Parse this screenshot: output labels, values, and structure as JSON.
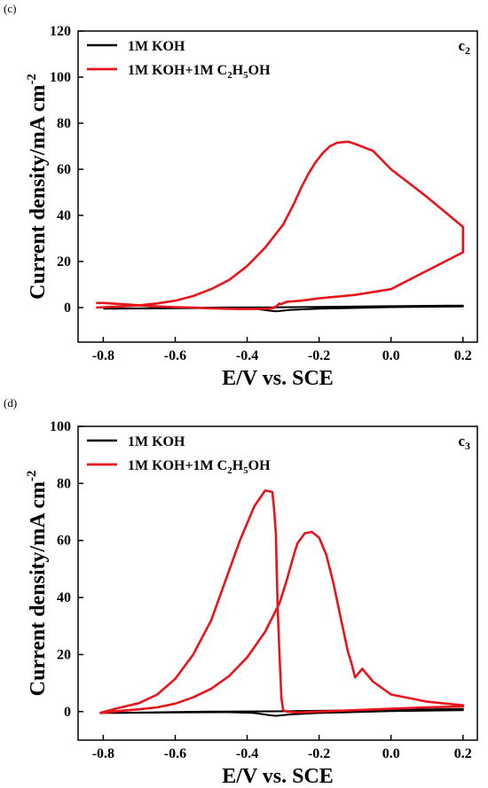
{
  "chart_data": [
    {
      "type": "line",
      "panel_letter": "(c)",
      "corner_label": "c",
      "corner_label_sub": "2",
      "xlabel": "E/V vs. SCE",
      "ylabel_main": "Current density/mA cm",
      "ylabel_sup": "-2",
      "xlim": [
        -0.87,
        0.24
      ],
      "ylim": [
        -15,
        120
      ],
      "x_ticks": [
        -0.8,
        -0.6,
        -0.4,
        -0.2,
        0.0,
        0.2
      ],
      "x_tick_labels": [
        "-0.8",
        "-0.6",
        "-0.4",
        "-0.2",
        "0.0",
        "0.2"
      ],
      "y_ticks": [
        0,
        20,
        40,
        60,
        80,
        100,
        120
      ],
      "y_tick_labels": [
        "0",
        "20",
        "40",
        "60",
        "80",
        "100",
        "120"
      ],
      "grid": false,
      "legend_position": "top-left",
      "series": [
        {
          "name": "1M KOH",
          "color": "#000000",
          "x": [
            -0.8,
            -0.6,
            -0.45,
            -0.38,
            -0.34,
            -0.32,
            -0.28,
            -0.2,
            0.0,
            0.2,
            0.2,
            0.0,
            -0.2,
            -0.33,
            -0.5,
            -0.8
          ],
          "y": [
            -0.5,
            -0.3,
            -0.2,
            -0.5,
            -1.3,
            -1.6,
            -1.0,
            -0.5,
            0.2,
            0.5,
            0.9,
            0.6,
            0.3,
            0.1,
            0.0,
            -0.5
          ]
        },
        {
          "name": "1M KOH+1M C2H5OH",
          "color": "#e8141b",
          "legend_main": "1M KOH+1M C",
          "legend_sub1": "2",
          "legend_mid": "H",
          "legend_sub2": "5",
          "legend_tail": "OH",
          "x": [
            -0.82,
            -0.75,
            -0.7,
            -0.65,
            -0.6,
            -0.55,
            -0.5,
            -0.45,
            -0.4,
            -0.35,
            -0.3,
            -0.27,
            -0.25,
            -0.23,
            -0.21,
            -0.19,
            -0.17,
            -0.15,
            -0.12,
            -0.1,
            -0.05,
            0.0,
            0.1,
            0.2,
            0.2,
            0.1,
            0.0,
            -0.1,
            -0.2,
            -0.25,
            -0.29,
            -0.305,
            -0.31,
            -0.315,
            -0.318,
            -0.32,
            -0.322,
            -0.325,
            -0.33,
            -0.35,
            -0.38,
            -0.42,
            -0.46,
            -0.5,
            -0.55,
            -0.6,
            -0.65,
            -0.7,
            -0.75,
            -0.8,
            -0.82
          ],
          "y": [
            0.0,
            0.5,
            1.0,
            1.8,
            3.0,
            5.0,
            8.0,
            12.0,
            18.0,
            26.0,
            36.0,
            45.0,
            52.0,
            58.0,
            63.0,
            67.0,
            70.0,
            71.5,
            72.0,
            71.0,
            68.0,
            60.0,
            48.0,
            35.0,
            24.0,
            16.0,
            8.0,
            5.5,
            4.0,
            3.0,
            2.5,
            1.5,
            1.8,
            1.0,
            0.8,
            0.5,
            0.3,
            0.0,
            -0.3,
            -0.5,
            -0.6,
            -0.6,
            -0.5,
            -0.3,
            0.0,
            0.2,
            0.5,
            1.0,
            1.5,
            2.0,
            2.0
          ]
        }
      ]
    },
    {
      "type": "line",
      "panel_letter": "(d)",
      "corner_label": "c",
      "corner_label_sub": "3",
      "xlabel": "E/V vs. SCE",
      "ylabel_main": "Current density/mA cm",
      "ylabel_sup": "-2",
      "xlim": [
        -0.87,
        0.24
      ],
      "ylim": [
        -10,
        100
      ],
      "x_ticks": [
        -0.8,
        -0.6,
        -0.4,
        -0.2,
        0.0,
        0.2
      ],
      "x_tick_labels": [
        "-0.8",
        "-0.6",
        "-0.4",
        "-0.2",
        "0.0",
        "0.2"
      ],
      "y_ticks": [
        0,
        20,
        40,
        60,
        80,
        100
      ],
      "y_tick_labels": [
        "0",
        "20",
        "40",
        "60",
        "80",
        "100"
      ],
      "grid": false,
      "legend_position": "top-left",
      "series": [
        {
          "name": "1M KOH",
          "color": "#000000",
          "x": [
            -0.8,
            -0.6,
            -0.45,
            -0.38,
            -0.34,
            -0.32,
            -0.28,
            -0.2,
            0.0,
            0.2,
            0.2,
            0.0,
            -0.2,
            -0.33,
            -0.5,
            -0.8
          ],
          "y": [
            -0.5,
            -0.3,
            -0.2,
            -0.5,
            -1.2,
            -1.5,
            -1.0,
            -0.5,
            0.2,
            0.5,
            0.9,
            0.6,
            0.3,
            0.1,
            0.0,
            -0.5
          ]
        },
        {
          "name": "1M KOH+1M C2H5OH",
          "color": "#e8141b",
          "legend_main": "1M KOH+1M C",
          "legend_sub1": "2",
          "legend_mid": "H",
          "legend_sub2": "5",
          "legend_tail": "OH",
          "x": [
            -0.81,
            -0.75,
            -0.7,
            -0.65,
            -0.6,
            -0.55,
            -0.5,
            -0.45,
            -0.4,
            -0.35,
            -0.31,
            -0.29,
            -0.27,
            -0.26,
            -0.24,
            -0.22,
            -0.2,
            -0.18,
            -0.16,
            -0.14,
            -0.12,
            -0.11,
            -0.1,
            -0.08,
            -0.05,
            0.0,
            0.1,
            0.2,
            0.2,
            0.1,
            0.0,
            -0.1,
            -0.2,
            -0.26,
            -0.29,
            -0.3,
            -0.305,
            -0.31,
            -0.315,
            -0.318,
            -0.32,
            -0.325,
            -0.33,
            -0.35,
            -0.38,
            -0.42,
            -0.46,
            -0.5,
            -0.55,
            -0.6,
            -0.65,
            -0.7,
            -0.75,
            -0.81
          ],
          "y": [
            -0.5,
            0.3,
            0.8,
            1.5,
            2.8,
            5.0,
            8.0,
            12.5,
            19.0,
            28.0,
            38.0,
            46.0,
            55.0,
            59.0,
            62.5,
            63.0,
            61.0,
            55.0,
            45.0,
            33.0,
            21.0,
            17.0,
            12.0,
            15.0,
            10.5,
            6.0,
            3.5,
            2.2,
            1.8,
            1.5,
            1.0,
            0.5,
            0.0,
            -0.3,
            0.0,
            0.5,
            5.0,
            20.0,
            36.0,
            50.0,
            62.0,
            71.0,
            77.0,
            77.5,
            72.0,
            60.0,
            46.0,
            32.0,
            20.0,
            11.5,
            6.0,
            3.0,
            1.5,
            -0.5
          ]
        }
      ]
    }
  ]
}
